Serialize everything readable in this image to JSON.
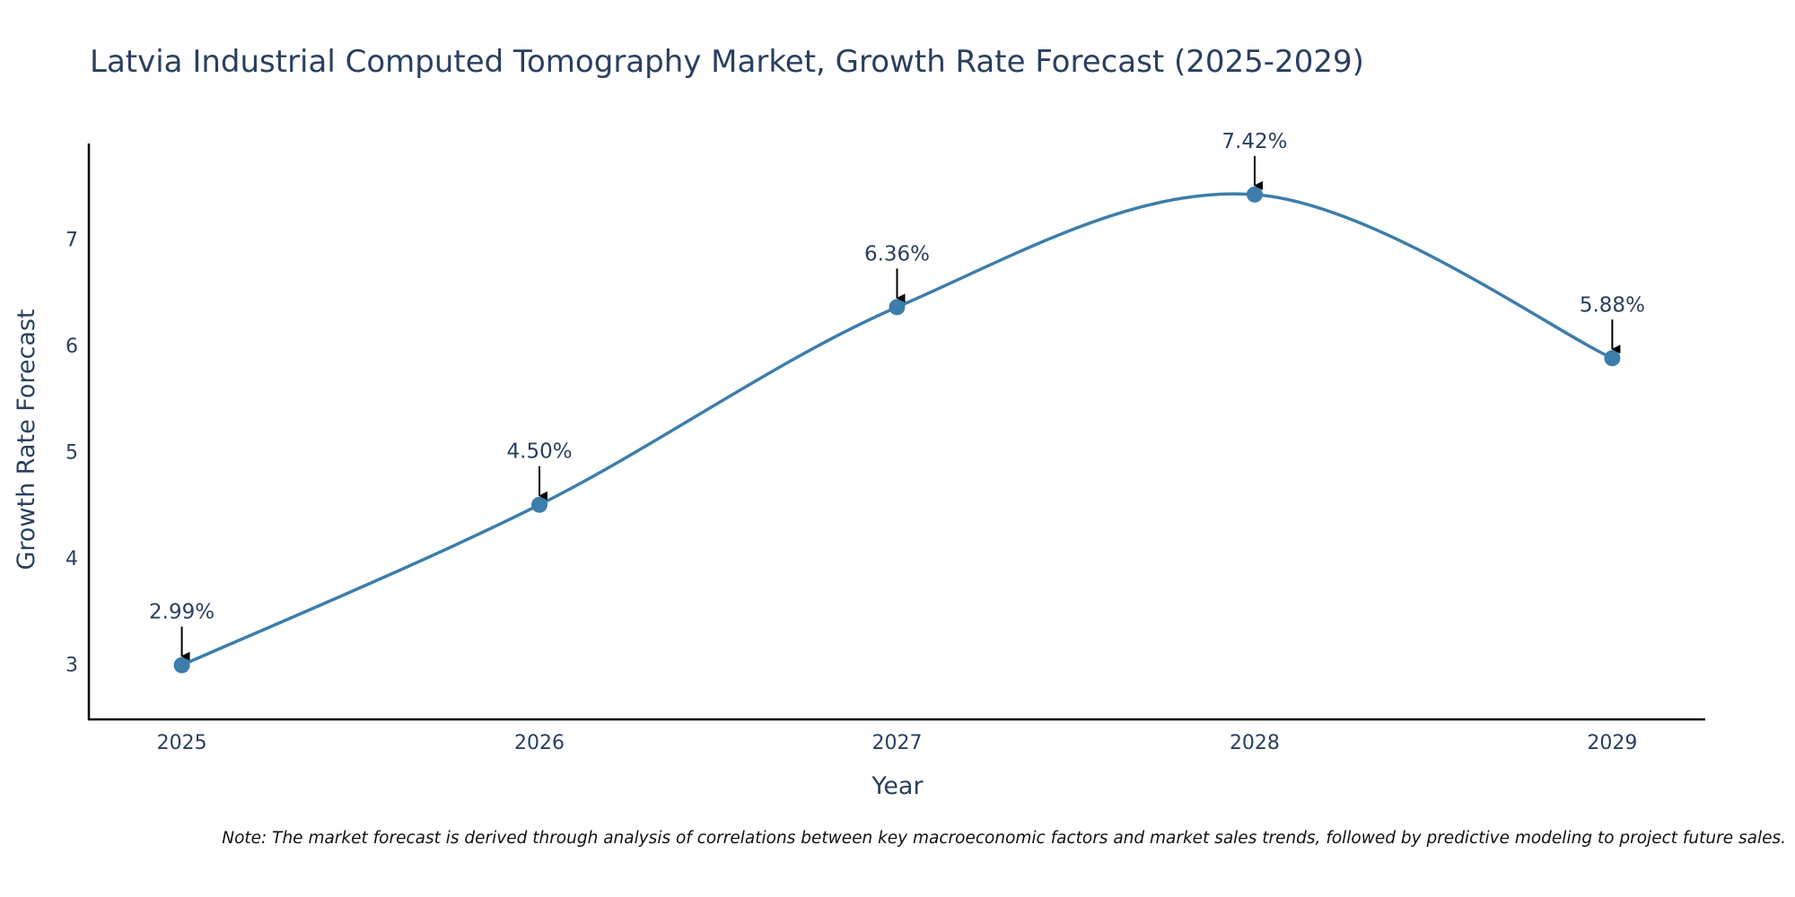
{
  "chart_data": {
    "type": "line",
    "title": "Latvia Industrial Computed Tomography Market, Growth Rate Forecast (2025-2029)",
    "xlabel": "Year",
    "ylabel": "Growth Rate Forecast",
    "categories": [
      "2025",
      "2026",
      "2027",
      "2028",
      "2029"
    ],
    "series": [
      {
        "name": "Growth Rate Forecast",
        "values": [
          2.99,
          4.5,
          6.36,
          7.42,
          5.88
        ],
        "labels": [
          "2.99%",
          "4.50%",
          "6.36%",
          "7.42%",
          "5.88%"
        ]
      }
    ],
    "yticks": [
      3,
      4,
      5,
      6,
      7
    ],
    "ylim": [
      2.48,
      7.9
    ],
    "xlim": [
      -0.26,
      4.26
    ],
    "grid": false,
    "legend": "none",
    "note": "Note: The market forecast is derived through analysis of correlations between key macroeconomic factors and market sales trends, followed by predictive modeling to project future sales."
  },
  "colors": {
    "line": "#3d7dab",
    "marker": "#3d7dab",
    "axis": "#000000",
    "text": "#2a3f5f",
    "arrow": "#000000"
  }
}
